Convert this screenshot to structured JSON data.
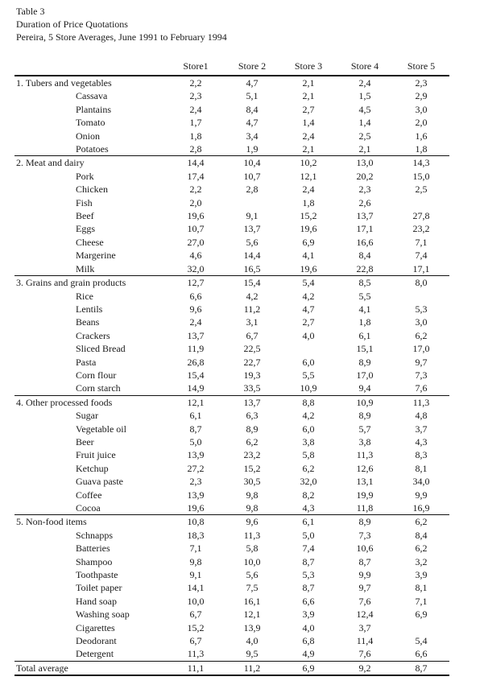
{
  "header": {
    "table_number": "Table 3",
    "title": "Duration of Price Quotations",
    "subtitle": "Pereira, 5 Store Averages, June 1991 to February 1994"
  },
  "table": {
    "columns": [
      "Store1",
      "Store 2",
      "Store 3",
      "Store 4",
      "Store 5"
    ],
    "sections": [
      {
        "label": "1. Tubers and vegetables",
        "values": [
          "2,2",
          "4,7",
          "2,1",
          "2,4",
          "2,3"
        ],
        "items": [
          {
            "label": "Cassava",
            "values": [
              "2,3",
              "5,1",
              "2,1",
              "1,5",
              "2,9"
            ]
          },
          {
            "label": "Plantains",
            "values": [
              "2,4",
              "8,4",
              "2,7",
              "4,5",
              "3,0"
            ]
          },
          {
            "label": "Tomato",
            "values": [
              "1,7",
              "4,7",
              "1,4",
              "1,4",
              "2,0"
            ]
          },
          {
            "label": "Onion",
            "values": [
              "1,8",
              "3,4",
              "2,4",
              "2,5",
              "1,6"
            ]
          },
          {
            "label": "Potatoes",
            "values": [
              "2,8",
              "1,9",
              "2,1",
              "2,1",
              "1,8"
            ]
          }
        ]
      },
      {
        "label": "2. Meat and dairy",
        "values": [
          "14,4",
          "10,4",
          "10,2",
          "13,0",
          "14,3"
        ],
        "items": [
          {
            "label": "Pork",
            "values": [
              "17,4",
              "10,7",
              "12,1",
              "20,2",
              "15,0"
            ]
          },
          {
            "label": "Chicken",
            "values": [
              "2,2",
              "2,8",
              "2,4",
              "2,3",
              "2,5"
            ]
          },
          {
            "label": "Fish",
            "values": [
              "2,0",
              "",
              "1,8",
              "2,6",
              ""
            ]
          },
          {
            "label": "Beef",
            "values": [
              "19,6",
              "9,1",
              "15,2",
              "13,7",
              "27,8"
            ]
          },
          {
            "label": "Eggs",
            "values": [
              "10,7",
              "13,7",
              "19,6",
              "17,1",
              "23,2"
            ]
          },
          {
            "label": "Cheese",
            "values": [
              "27,0",
              "5,6",
              "6,9",
              "16,6",
              "7,1"
            ]
          },
          {
            "label": "Margerine",
            "values": [
              "4,6",
              "14,4",
              "4,1",
              "8,4",
              "7,4"
            ]
          },
          {
            "label": "Milk",
            "values": [
              "32,0",
              "16,5",
              "19,6",
              "22,8",
              "17,1"
            ]
          }
        ]
      },
      {
        "label": "3. Grains and grain products",
        "values": [
          "12,7",
          "15,4",
          "5,4",
          "8,5",
          "8,0"
        ],
        "items": [
          {
            "label": "Rice",
            "values": [
              "6,6",
              "4,2",
              "4,2",
              "5,5",
              ""
            ]
          },
          {
            "label": "Lentils",
            "values": [
              "9,6",
              "11,2",
              "4,7",
              "4,1",
              "5,3"
            ]
          },
          {
            "label": "Beans",
            "values": [
              "2,4",
              "3,1",
              "2,7",
              "1,8",
              "3,0"
            ]
          },
          {
            "label": "Crackers",
            "values": [
              "13,7",
              "6,7",
              "4,0",
              "6,1",
              "6,2"
            ]
          },
          {
            "label": "Sliced Bread",
            "values": [
              "11,9",
              "22,5",
              "",
              "15,1",
              "17,0"
            ]
          },
          {
            "label": "Pasta",
            "values": [
              "26,8",
              "22,7",
              "6,0",
              "8,9",
              "9,7"
            ]
          },
          {
            "label": "Corn flour",
            "values": [
              "15,4",
              "19,3",
              "5,5",
              "17,0",
              "7,3"
            ]
          },
          {
            "label": "Corn starch",
            "values": [
              "14,9",
              "33,5",
              "10,9",
              "9,4",
              "7,6"
            ]
          }
        ]
      },
      {
        "label": "4. Other processed foods",
        "values": [
          "12,1",
          "13,7",
          "8,8",
          "10,9",
          "11,3"
        ],
        "items": [
          {
            "label": "Sugar",
            "values": [
              "6,1",
              "6,3",
              "4,2",
              "8,9",
              "4,8"
            ]
          },
          {
            "label": "Vegetable oil",
            "values": [
              "8,7",
              "8,9",
              "6,0",
              "5,7",
              "3,7"
            ]
          },
          {
            "label": "Beer",
            "values": [
              "5,0",
              "6,2",
              "3,8",
              "3,8",
              "4,3"
            ]
          },
          {
            "label": "Fruit juice",
            "values": [
              "13,9",
              "23,2",
              "5,8",
              "11,3",
              "8,3"
            ]
          },
          {
            "label": "Ketchup",
            "values": [
              "27,2",
              "15,2",
              "6,2",
              "12,6",
              "8,1"
            ]
          },
          {
            "label": "Guava paste",
            "values": [
              "2,3",
              "30,5",
              "32,0",
              "13,1",
              "34,0"
            ]
          },
          {
            "label": "Coffee",
            "values": [
              "13,9",
              "9,8",
              "8,2",
              "19,9",
              "9,9"
            ]
          },
          {
            "label": "Cocoa",
            "values": [
              "19,6",
              "9,8",
              "4,3",
              "11,8",
              "16,9"
            ]
          }
        ]
      },
      {
        "label": "5. Non-food items",
        "values": [
          "10,8",
          "9,6",
          "6,1",
          "8,9",
          "6,2"
        ],
        "items": [
          {
            "label": "Schnapps",
            "values": [
              "18,3",
              "11,3",
              "5,0",
              "7,3",
              "8,4"
            ]
          },
          {
            "label": "Batteries",
            "values": [
              "7,1",
              "5,8",
              "7,4",
              "10,6",
              "6,2"
            ]
          },
          {
            "label": "Shampoo",
            "values": [
              "9,8",
              "10,0",
              "8,7",
              "8,7",
              "3,2"
            ]
          },
          {
            "label": "Toothpaste",
            "values": [
              "9,1",
              "5,6",
              "5,3",
              "9,9",
              "3,9"
            ]
          },
          {
            "label": "Toilet paper",
            "values": [
              "14,1",
              "7,5",
              "8,7",
              "9,7",
              "8,1"
            ]
          },
          {
            "label": "Hand soap",
            "values": [
              "10,0",
              "16,1",
              "6,6",
              "7,6",
              "7,1"
            ]
          },
          {
            "label": "Washing soap",
            "values": [
              "6,7",
              "12,1",
              "3,9",
              "12,4",
              "6,9"
            ]
          },
          {
            "label": "Cigarettes",
            "values": [
              "15,2",
              "13,9",
              "4,0",
              "3,7",
              ""
            ]
          },
          {
            "label": "Deodorant",
            "values": [
              "6,7",
              "4,0",
              "6,8",
              "11,4",
              "5,4"
            ]
          },
          {
            "label": "Detergent",
            "values": [
              "11,3",
              "9,5",
              "4,9",
              "7,6",
              "6,6"
            ]
          }
        ]
      }
    ],
    "total": {
      "label": "Total average",
      "values": [
        "11,1",
        "11,2",
        "6,9",
        "9,2",
        "8,7"
      ]
    }
  }
}
